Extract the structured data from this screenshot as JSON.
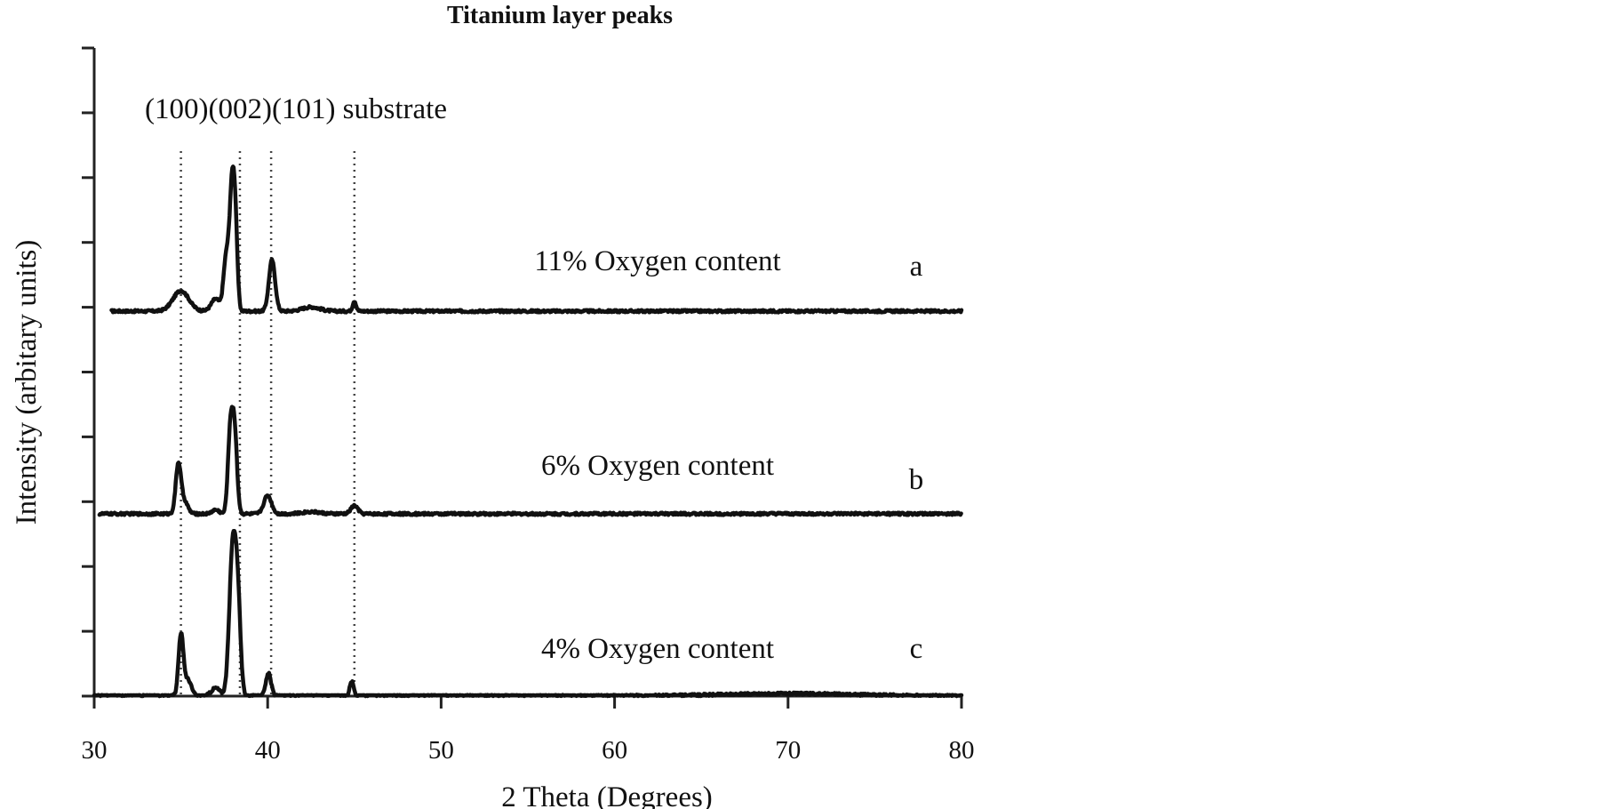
{
  "chart_data": {
    "type": "line",
    "title": "Titanium layer peaks",
    "xlabel": "2 Theta (Degrees)",
    "ylabel": "Intensity (arbitary units)",
    "xlim": [
      30,
      80
    ],
    "x_ticks": [
      "30",
      "40",
      "50",
      "60",
      "70",
      "80"
    ],
    "y_tick_count": 11,
    "grid": false,
    "peak_header": "(100)(002)(101) substrate",
    "reference_lines": [
      {
        "name": "(100)",
        "x": 35.0
      },
      {
        "name": "(002)",
        "x": 38.4
      },
      {
        "name": "(101)",
        "x": 40.2
      },
      {
        "name": "substrate",
        "x": 45.0
      }
    ],
    "series": [
      {
        "label": "11% Oxygen content",
        "tag": "a",
        "baseline": 0.0,
        "noise": 0.006,
        "x_start": 31.0,
        "peaks": [
          [
            35.0,
            0.1,
            0.45
          ],
          [
            37.0,
            0.06,
            0.25
          ],
          [
            37.6,
            0.25,
            0.15
          ],
          [
            37.95,
            0.6,
            0.15
          ],
          [
            38.15,
            0.3,
            0.12
          ],
          [
            40.25,
            0.25,
            0.18
          ],
          [
            42.5,
            0.02,
            0.5
          ],
          [
            45.0,
            0.05,
            0.1
          ]
        ]
      },
      {
        "label": "6% Oxygen content",
        "tag": "b",
        "baseline": 0.0,
        "noise": 0.006,
        "x_start": 30.3,
        "peaks": [
          [
            34.85,
            0.24,
            0.15
          ],
          [
            35.2,
            0.06,
            0.2
          ],
          [
            37.0,
            0.02,
            0.2
          ],
          [
            37.85,
            0.4,
            0.14
          ],
          [
            38.1,
            0.38,
            0.14
          ],
          [
            40.0,
            0.09,
            0.22
          ],
          [
            42.5,
            0.01,
            0.5
          ],
          [
            45.0,
            0.04,
            0.2
          ]
        ]
      },
      {
        "label": "4% Oxygen content",
        "tag": "c",
        "baseline": 0.0,
        "noise": 0.006,
        "x_start": 30.0,
        "peaks": [
          [
            35.0,
            0.3,
            0.14
          ],
          [
            35.4,
            0.08,
            0.2
          ],
          [
            37.0,
            0.04,
            0.25
          ],
          [
            38.0,
            0.75,
            0.2
          ],
          [
            38.3,
            0.35,
            0.15
          ],
          [
            40.05,
            0.11,
            0.15
          ],
          [
            44.85,
            0.07,
            0.12
          ],
          [
            70.0,
            0.012,
            4.0
          ]
        ]
      }
    ]
  }
}
